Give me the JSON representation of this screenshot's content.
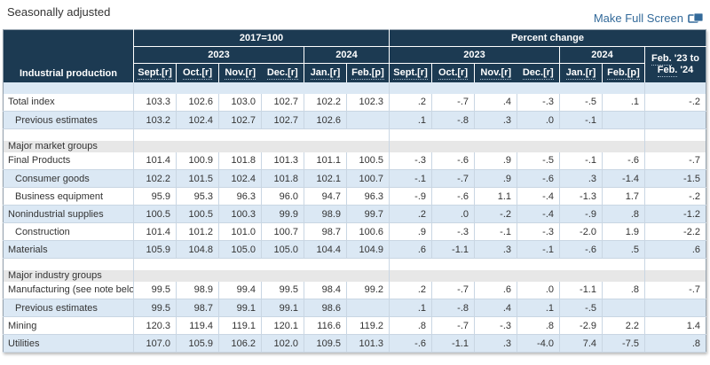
{
  "page": {
    "title": "Seasonally adjusted",
    "full_screen_label": "Make Full Screen",
    "full_screen_icon": "window-expand-icon"
  },
  "colors": {
    "header_bg": "#1c3a52",
    "row_alt_blue": "#dbe8f4",
    "section_gray": "#e7e7e7",
    "border": "#c9d6e3",
    "link": "#336a9a"
  },
  "table": {
    "corner_header": "Industrial production",
    "group_headers": [
      "2017=100",
      "Percent change"
    ],
    "year_headers": [
      "2023",
      "2024",
      "2023",
      "2024"
    ],
    "month_headers": [
      "Sept.[r]",
      "Oct.[r]",
      "Nov.[r]",
      "Dec.[r]",
      "Jan.[r]",
      "Feb.[p]",
      "Sept.[r]",
      "Oct.[r]",
      "Nov.[r]",
      "Dec.[r]",
      "Jan.[r]",
      "Feb.[p]"
    ],
    "change_header": {
      "line1_dotted": "Feb.",
      "line1_rest": " '23 to",
      "line2_dotted": "Feb.",
      "line2_rest": " '24"
    },
    "rows": [
      {
        "type": "blank",
        "shade": "blue"
      },
      {
        "type": "data",
        "shade": "white",
        "indent": 0,
        "label": "Total index",
        "values": [
          "103.3",
          "102.6",
          "103.0",
          "102.7",
          "102.2",
          "102.3",
          ".2",
          "-.7",
          ".4",
          "-.3",
          "-.5",
          ".1",
          "-.2"
        ]
      },
      {
        "type": "data",
        "shade": "blue",
        "indent": 1,
        "label": "Previous estimates",
        "values": [
          "103.2",
          "102.4",
          "102.7",
          "102.7",
          "102.6",
          "",
          ".1",
          "-.8",
          ".3",
          ".0",
          "-.1",
          "",
          ""
        ]
      },
      {
        "type": "blank",
        "shade": "white"
      },
      {
        "type": "section",
        "label": "Major market groups"
      },
      {
        "type": "data",
        "shade": "white",
        "indent": 0,
        "label": "Final Products",
        "values": [
          "101.4",
          "100.9",
          "101.8",
          "101.3",
          "101.1",
          "100.5",
          "-.3",
          "-.6",
          ".9",
          "-.5",
          "-.1",
          "-.6",
          "-.7"
        ]
      },
      {
        "type": "data",
        "shade": "blue",
        "indent": 1,
        "label": "Consumer goods",
        "values": [
          "102.2",
          "101.5",
          "102.4",
          "101.8",
          "102.1",
          "100.7",
          "-.1",
          "-.7",
          ".9",
          "-.6",
          ".3",
          "-1.4",
          "-1.5"
        ]
      },
      {
        "type": "data",
        "shade": "white",
        "indent": 1,
        "label": "Business equipment",
        "values": [
          "95.9",
          "95.3",
          "96.3",
          "96.0",
          "94.7",
          "96.3",
          "-.9",
          "-.6",
          "1.1",
          "-.4",
          "-1.3",
          "1.7",
          "-.2"
        ]
      },
      {
        "type": "data",
        "shade": "blue",
        "indent": 0,
        "label": "Nonindustrial supplies",
        "values": [
          "100.5",
          "100.5",
          "100.3",
          "99.9",
          "98.9",
          "99.7",
          ".2",
          ".0",
          "-.2",
          "-.4",
          "-.9",
          ".8",
          "-1.2"
        ]
      },
      {
        "type": "data",
        "shade": "white",
        "indent": 1,
        "label": "Construction",
        "values": [
          "101.4",
          "101.2",
          "101.0",
          "100.7",
          "98.7",
          "100.6",
          ".9",
          "-.3",
          "-.1",
          "-.3",
          "-2.0",
          "1.9",
          "-2.2"
        ]
      },
      {
        "type": "data",
        "shade": "blue",
        "indent": 0,
        "label": "Materials",
        "values": [
          "105.9",
          "104.8",
          "105.0",
          "105.0",
          "104.4",
          "104.9",
          ".6",
          "-1.1",
          ".3",
          "-.1",
          "-.6",
          ".5",
          ".6"
        ]
      },
      {
        "type": "blank",
        "shade": "white"
      },
      {
        "type": "section",
        "label": "Major industry groups"
      },
      {
        "type": "data",
        "shade": "white",
        "indent": 0,
        "label": "Manufacturing (see note below)",
        "values": [
          "99.5",
          "98.9",
          "99.4",
          "99.5",
          "98.4",
          "99.2",
          ".2",
          "-.7",
          ".6",
          ".0",
          "-1.1",
          ".8",
          "-.7"
        ]
      },
      {
        "type": "data",
        "shade": "blue",
        "indent": 1,
        "label": "Previous estimates",
        "values": [
          "99.5",
          "98.7",
          "99.1",
          "99.1",
          "98.6",
          "",
          ".1",
          "-.8",
          ".4",
          ".1",
          "-.5",
          "",
          ""
        ]
      },
      {
        "type": "data",
        "shade": "white",
        "indent": 0,
        "label": "Mining",
        "values": [
          "120.3",
          "119.4",
          "119.1",
          "120.1",
          "116.6",
          "119.2",
          ".8",
          "-.7",
          "-.3",
          ".8",
          "-2.9",
          "2.2",
          "1.4"
        ]
      },
      {
        "type": "data",
        "shade": "blue",
        "indent": 0,
        "label": "Utilities",
        "values": [
          "107.0",
          "105.9",
          "106.2",
          "102.0",
          "109.5",
          "101.3",
          "-.6",
          "-1.1",
          ".3",
          "-4.0",
          "7.4",
          "-7.5",
          ".8"
        ]
      }
    ]
  }
}
